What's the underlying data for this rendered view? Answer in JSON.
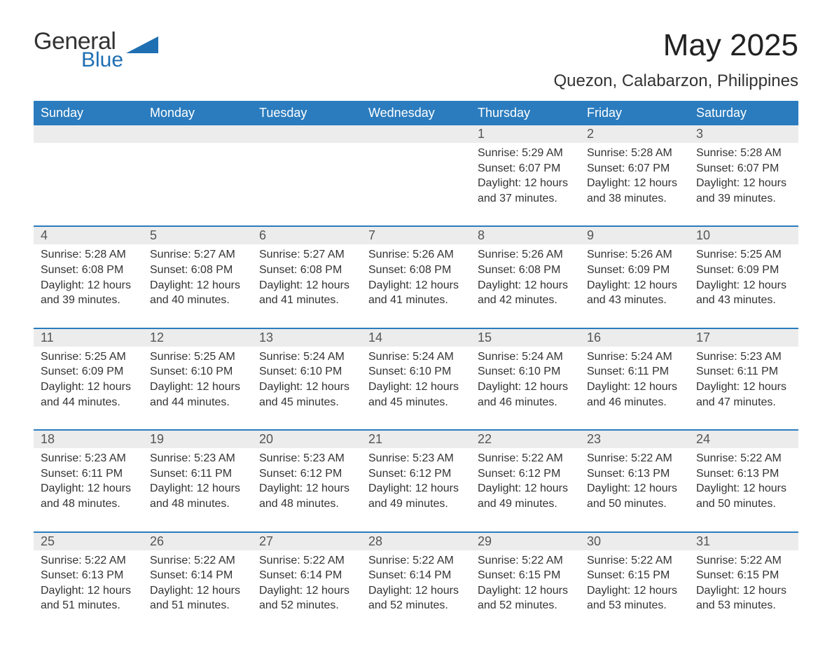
{
  "logo": {
    "word1": "General",
    "word2": "Blue",
    "shape_color": "#1f6fb2"
  },
  "title": "May 2025",
  "subtitle": "Quezon, Calabarzon, Philippines",
  "colors": {
    "header_bg": "#2b7cbe",
    "header_fg": "#ffffff",
    "daynum_bg": "#ececec",
    "cell_border": "#2b7cbe",
    "text": "#333333",
    "logo_blue": "#1f6fb2"
  },
  "day_headers": [
    "Sunday",
    "Monday",
    "Tuesday",
    "Wednesday",
    "Thursday",
    "Friday",
    "Saturday"
  ],
  "weeks": [
    [
      {
        "empty": true
      },
      {
        "empty": true
      },
      {
        "empty": true
      },
      {
        "empty": true
      },
      {
        "n": "1",
        "sunrise": "Sunrise: 5:29 AM",
        "sunset": "Sunset: 6:07 PM",
        "d1": "Daylight: 12 hours",
        "d2": "and 37 minutes."
      },
      {
        "n": "2",
        "sunrise": "Sunrise: 5:28 AM",
        "sunset": "Sunset: 6:07 PM",
        "d1": "Daylight: 12 hours",
        "d2": "and 38 minutes."
      },
      {
        "n": "3",
        "sunrise": "Sunrise: 5:28 AM",
        "sunset": "Sunset: 6:07 PM",
        "d1": "Daylight: 12 hours",
        "d2": "and 39 minutes."
      }
    ],
    [
      {
        "n": "4",
        "sunrise": "Sunrise: 5:28 AM",
        "sunset": "Sunset: 6:08 PM",
        "d1": "Daylight: 12 hours",
        "d2": "and 39 minutes."
      },
      {
        "n": "5",
        "sunrise": "Sunrise: 5:27 AM",
        "sunset": "Sunset: 6:08 PM",
        "d1": "Daylight: 12 hours",
        "d2": "and 40 minutes."
      },
      {
        "n": "6",
        "sunrise": "Sunrise: 5:27 AM",
        "sunset": "Sunset: 6:08 PM",
        "d1": "Daylight: 12 hours",
        "d2": "and 41 minutes."
      },
      {
        "n": "7",
        "sunrise": "Sunrise: 5:26 AM",
        "sunset": "Sunset: 6:08 PM",
        "d1": "Daylight: 12 hours",
        "d2": "and 41 minutes."
      },
      {
        "n": "8",
        "sunrise": "Sunrise: 5:26 AM",
        "sunset": "Sunset: 6:08 PM",
        "d1": "Daylight: 12 hours",
        "d2": "and 42 minutes."
      },
      {
        "n": "9",
        "sunrise": "Sunrise: 5:26 AM",
        "sunset": "Sunset: 6:09 PM",
        "d1": "Daylight: 12 hours",
        "d2": "and 43 minutes."
      },
      {
        "n": "10",
        "sunrise": "Sunrise: 5:25 AM",
        "sunset": "Sunset: 6:09 PM",
        "d1": "Daylight: 12 hours",
        "d2": "and 43 minutes."
      }
    ],
    [
      {
        "n": "11",
        "sunrise": "Sunrise: 5:25 AM",
        "sunset": "Sunset: 6:09 PM",
        "d1": "Daylight: 12 hours",
        "d2": "and 44 minutes."
      },
      {
        "n": "12",
        "sunrise": "Sunrise: 5:25 AM",
        "sunset": "Sunset: 6:10 PM",
        "d1": "Daylight: 12 hours",
        "d2": "and 44 minutes."
      },
      {
        "n": "13",
        "sunrise": "Sunrise: 5:24 AM",
        "sunset": "Sunset: 6:10 PM",
        "d1": "Daylight: 12 hours",
        "d2": "and 45 minutes."
      },
      {
        "n": "14",
        "sunrise": "Sunrise: 5:24 AM",
        "sunset": "Sunset: 6:10 PM",
        "d1": "Daylight: 12 hours",
        "d2": "and 45 minutes."
      },
      {
        "n": "15",
        "sunrise": "Sunrise: 5:24 AM",
        "sunset": "Sunset: 6:10 PM",
        "d1": "Daylight: 12 hours",
        "d2": "and 46 minutes."
      },
      {
        "n": "16",
        "sunrise": "Sunrise: 5:24 AM",
        "sunset": "Sunset: 6:11 PM",
        "d1": "Daylight: 12 hours",
        "d2": "and 46 minutes."
      },
      {
        "n": "17",
        "sunrise": "Sunrise: 5:23 AM",
        "sunset": "Sunset: 6:11 PM",
        "d1": "Daylight: 12 hours",
        "d2": "and 47 minutes."
      }
    ],
    [
      {
        "n": "18",
        "sunrise": "Sunrise: 5:23 AM",
        "sunset": "Sunset: 6:11 PM",
        "d1": "Daylight: 12 hours",
        "d2": "and 48 minutes."
      },
      {
        "n": "19",
        "sunrise": "Sunrise: 5:23 AM",
        "sunset": "Sunset: 6:11 PM",
        "d1": "Daylight: 12 hours",
        "d2": "and 48 minutes."
      },
      {
        "n": "20",
        "sunrise": "Sunrise: 5:23 AM",
        "sunset": "Sunset: 6:12 PM",
        "d1": "Daylight: 12 hours",
        "d2": "and 48 minutes."
      },
      {
        "n": "21",
        "sunrise": "Sunrise: 5:23 AM",
        "sunset": "Sunset: 6:12 PM",
        "d1": "Daylight: 12 hours",
        "d2": "and 49 minutes."
      },
      {
        "n": "22",
        "sunrise": "Sunrise: 5:22 AM",
        "sunset": "Sunset: 6:12 PM",
        "d1": "Daylight: 12 hours",
        "d2": "and 49 minutes."
      },
      {
        "n": "23",
        "sunrise": "Sunrise: 5:22 AM",
        "sunset": "Sunset: 6:13 PM",
        "d1": "Daylight: 12 hours",
        "d2": "and 50 minutes."
      },
      {
        "n": "24",
        "sunrise": "Sunrise: 5:22 AM",
        "sunset": "Sunset: 6:13 PM",
        "d1": "Daylight: 12 hours",
        "d2": "and 50 minutes."
      }
    ],
    [
      {
        "n": "25",
        "sunrise": "Sunrise: 5:22 AM",
        "sunset": "Sunset: 6:13 PM",
        "d1": "Daylight: 12 hours",
        "d2": "and 51 minutes."
      },
      {
        "n": "26",
        "sunrise": "Sunrise: 5:22 AM",
        "sunset": "Sunset: 6:14 PM",
        "d1": "Daylight: 12 hours",
        "d2": "and 51 minutes."
      },
      {
        "n": "27",
        "sunrise": "Sunrise: 5:22 AM",
        "sunset": "Sunset: 6:14 PM",
        "d1": "Daylight: 12 hours",
        "d2": "and 52 minutes."
      },
      {
        "n": "28",
        "sunrise": "Sunrise: 5:22 AM",
        "sunset": "Sunset: 6:14 PM",
        "d1": "Daylight: 12 hours",
        "d2": "and 52 minutes."
      },
      {
        "n": "29",
        "sunrise": "Sunrise: 5:22 AM",
        "sunset": "Sunset: 6:15 PM",
        "d1": "Daylight: 12 hours",
        "d2": "and 52 minutes."
      },
      {
        "n": "30",
        "sunrise": "Sunrise: 5:22 AM",
        "sunset": "Sunset: 6:15 PM",
        "d1": "Daylight: 12 hours",
        "d2": "and 53 minutes."
      },
      {
        "n": "31",
        "sunrise": "Sunrise: 5:22 AM",
        "sunset": "Sunset: 6:15 PM",
        "d1": "Daylight: 12 hours",
        "d2": "and 53 minutes."
      }
    ]
  ]
}
